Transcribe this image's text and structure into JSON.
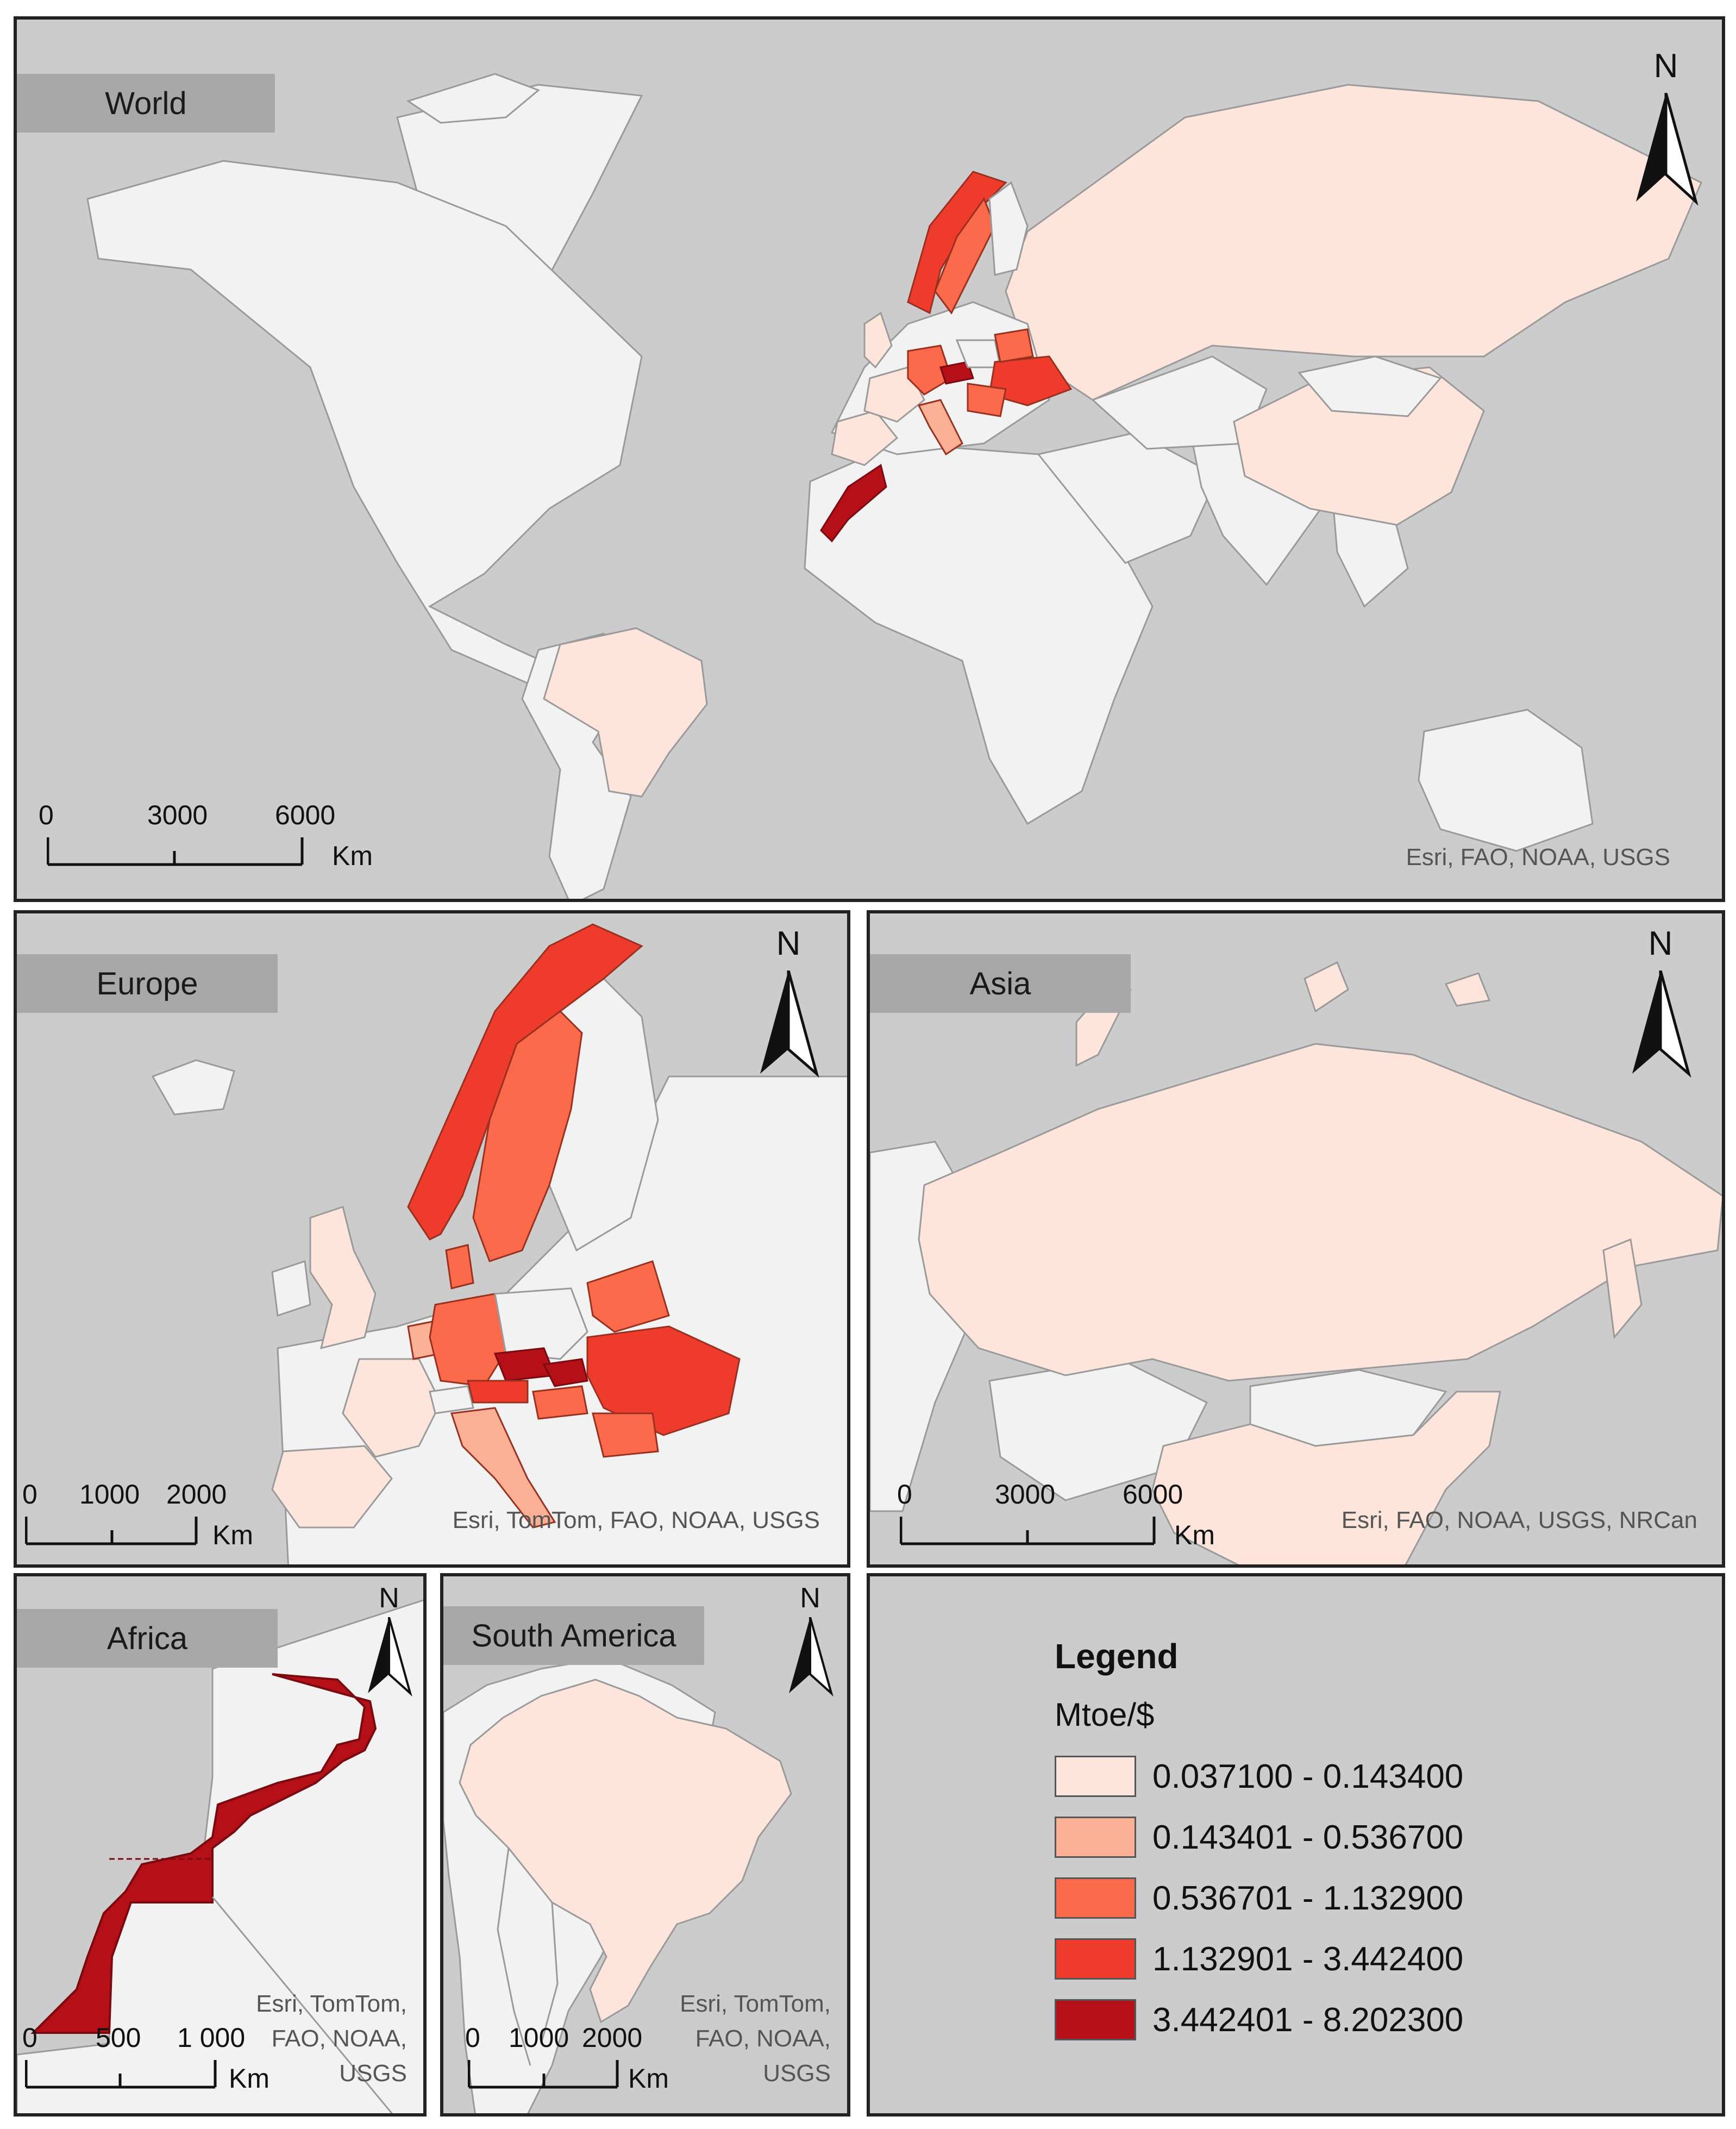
{
  "colors": {
    "ocean": "#cccccc",
    "land": "#f2f2f2",
    "class1": "#fde5dc",
    "class2": "#fcb197",
    "class3": "#fb6a4a",
    "class4": "#ef3b2c",
    "class5": "#b50f17"
  },
  "panels": {
    "world": {
      "label": "World",
      "north": "N",
      "scale": {
        "ticks": [
          "0",
          "3000",
          "6000"
        ],
        "unit": "Km"
      },
      "credit": "Esri, FAO, NOAA, USGS"
    },
    "europe": {
      "label": "Europe",
      "north": "N",
      "scale": {
        "ticks": [
          "0",
          "1000",
          "2000"
        ],
        "unit": "Km"
      },
      "credit": "Esri, TomTom, FAO, NOAA, USGS"
    },
    "asia": {
      "label": "Asia",
      "north": "N",
      "scale": {
        "ticks": [
          "0",
          "3000",
          "6000"
        ],
        "unit": "Km"
      },
      "credit": "Esri, FAO, NOAA, USGS, NRCan"
    },
    "africa": {
      "label": "Africa",
      "north": "N",
      "scale": {
        "ticks": [
          "0",
          "500",
          "1 000"
        ],
        "unit": "Km"
      },
      "credit_lines": [
        "Esri, TomTom,",
        "FAO, NOAA,",
        "USGS"
      ]
    },
    "south_america": {
      "label": "South America",
      "north": "N",
      "scale": {
        "ticks": [
          "0",
          "1000",
          "2000"
        ],
        "unit": "Km"
      },
      "credit_lines": [
        "Esri, TomTom,",
        "FAO, NOAA,",
        "USGS"
      ]
    }
  },
  "legend": {
    "title": "Legend",
    "unit": "Mtoe/$",
    "classes": [
      {
        "label": "0.037100 - 0.143400",
        "color": "#fde5dc"
      },
      {
        "label": "0.143401 - 0.536700",
        "color": "#fcb197"
      },
      {
        "label": "0.536701 - 1.132900",
        "color": "#fb6a4a"
      },
      {
        "label": "1.132901 - 3.442400",
        "color": "#ef3b2c"
      },
      {
        "label": "3.442401 - 8.202300",
        "color": "#b50f17"
      }
    ]
  }
}
